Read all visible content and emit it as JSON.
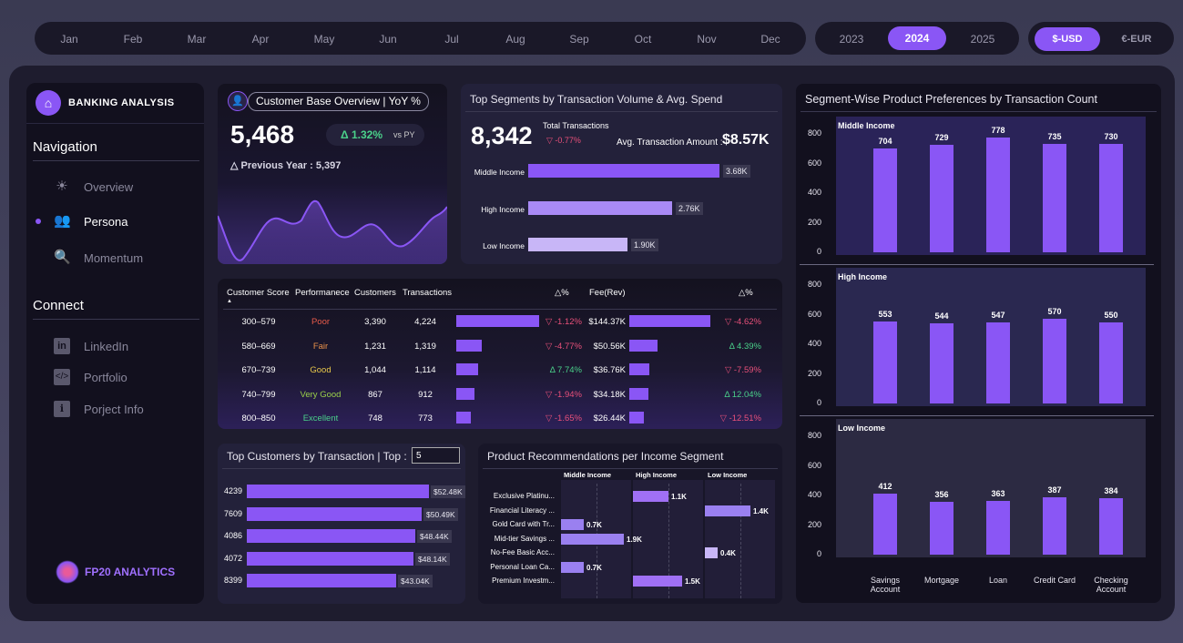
{
  "months": [
    "Jan",
    "Feb",
    "Mar",
    "Apr",
    "May",
    "Jun",
    "Jul",
    "Aug",
    "Sep",
    "Oct",
    "Nov",
    "Dec"
  ],
  "years": {
    "y1": "2023",
    "y2": "2024",
    "y3": "2025"
  },
  "currency": {
    "usd": "$-USD",
    "eur": "€-EUR"
  },
  "sidebar": {
    "app_title": "BANKING ANALYSIS",
    "nav_heading": "Navigation",
    "nav": [
      {
        "label": "Overview"
      },
      {
        "label": "Persona"
      },
      {
        "label": "Momentum"
      }
    ],
    "connect_heading": "Connect",
    "connect": [
      {
        "label": "LinkedIn"
      },
      {
        "label": "Portfolio"
      },
      {
        "label": "Porject Info"
      }
    ],
    "brand": "FP20 ANALYTICS"
  },
  "kpi": {
    "title": "Customer Base Overview | YoY %",
    "value": "5,468",
    "delta": "Δ 1.32%",
    "vs": "vs PY",
    "prev": "△ Previous Year : 5,397"
  },
  "segments_card": {
    "title": "Top Segments by Transaction Volume & Avg. Spend",
    "total": "8,342",
    "total_label": "Total Transactions",
    "total_delta": "▽ -0.77%",
    "avg_label": "Avg. Transaction Amount :",
    "avg_value": "$8.57K",
    "rows": [
      {
        "label": "Middle Income",
        "value": "3.68K",
        "share": 1.0
      },
      {
        "label": "High Income",
        "value": "2.76K",
        "share": 0.75
      },
      {
        "label": "Low Income",
        "value": "1.90K",
        "share": 0.52
      }
    ]
  },
  "score_table": {
    "headers": {
      "score": "Customer Score",
      "perf": "Performanece",
      "cust": "Customers",
      "trans": "Transactions",
      "d1": "△%",
      "fee": "Fee(Rev)",
      "d2": "△%"
    },
    "rows": [
      {
        "score": "300–579",
        "perf": "Poor",
        "perf_color": "#e85a4a",
        "cust": "3,390",
        "trans": "4,224",
        "trans_share": 1.0,
        "d1": "▽ -1.12%",
        "d1_color": "#e8507a",
        "fee": "$144.37K",
        "fee_share": 1.0,
        "d2": "▽ -4.62%",
        "d2_color": "#e8507a"
      },
      {
        "score": "580–669",
        "perf": "Fair",
        "perf_color": "#e8904a",
        "cust": "1,231",
        "trans": "1,319",
        "trans_share": 0.31,
        "d1": "▽ -4.77%",
        "d1_color": "#e8507a",
        "fee": "$50.56K",
        "fee_share": 0.35,
        "d2": "Δ 4.39%",
        "d2_color": "#4ad08a"
      },
      {
        "score": "670–739",
        "perf": "Good",
        "perf_color": "#e8c84a",
        "cust": "1,044",
        "trans": "1,114",
        "trans_share": 0.26,
        "d1": "Δ 7.74%",
        "d1_color": "#4ad08a",
        "fee": "$36.76K",
        "fee_share": 0.25,
        "d2": "▽ -7.59%",
        "d2_color": "#e8507a"
      },
      {
        "score": "740–799",
        "perf": "Very Good",
        "perf_color": "#9ad04a",
        "cust": "867",
        "trans": "912",
        "trans_share": 0.22,
        "d1": "▽ -1.94%",
        "d1_color": "#e8507a",
        "fee": "$34.18K",
        "fee_share": 0.24,
        "d2": "Δ 12.04%",
        "d2_color": "#4ad08a"
      },
      {
        "score": "800–850",
        "perf": "Excellent",
        "perf_color": "#4ad08a",
        "cust": "748",
        "trans": "773",
        "trans_share": 0.18,
        "d1": "▽ -1.65%",
        "d1_color": "#e8507a",
        "fee": "$26.44K",
        "fee_share": 0.18,
        "d2": "▽ -12.51%",
        "d2_color": "#e8507a"
      }
    ]
  },
  "top_customers": {
    "title": "Top Customers by Transaction | Top :",
    "top_n": "5",
    "rows": [
      {
        "id": "4239",
        "value": "$52.48K",
        "share": 1.0
      },
      {
        "id": "7609",
        "value": "$50.49K",
        "share": 0.962
      },
      {
        "id": "4086",
        "value": "$48.44K",
        "share": 0.923
      },
      {
        "id": "4072",
        "value": "$48.14K",
        "share": 0.917
      },
      {
        "id": "8399",
        "value": "$43.04K",
        "share": 0.82
      }
    ]
  },
  "recommendations": {
    "title": "Product Recommendations per Income Segment",
    "columns": [
      "Middle Income",
      "High Income",
      "Low Income"
    ],
    "rows": [
      {
        "label": "Exclusive Platinu...",
        "col": 1,
        "value": "1.1K",
        "share": 0.28
      },
      {
        "label": "Financial Literacy ...",
        "col": 2,
        "value": "1.4K",
        "share": 0.36
      },
      {
        "label": "Gold Card with Tr...",
        "col": 0,
        "value": "0.7K",
        "share": 0.18
      },
      {
        "label": "Mid-tier Savings ...",
        "col": 0,
        "value": "1.9K",
        "share": 0.5
      },
      {
        "label": "No-Fee Basic Acc...",
        "col": 2,
        "value": "0.4K",
        "share": 0.1
      },
      {
        "label": "Personal Loan Ca...",
        "col": 0,
        "value": "0.7K",
        "share": 0.18
      },
      {
        "label": "Premium Investm...",
        "col": 1,
        "value": "1.5K",
        "share": 0.39
      }
    ]
  },
  "chart_data": {
    "type": "bar",
    "title": "Segment-Wise Product Preferences by Transaction Count",
    "categories": [
      "Savings Account",
      "Mortgage",
      "Loan",
      "Credit Card",
      "Checking Account"
    ],
    "ylim": [
      0,
      800
    ],
    "yticks": [
      0,
      200,
      400,
      600,
      800
    ],
    "series": [
      {
        "name": "Middle Income",
        "values": [
          704,
          729,
          778,
          735,
          730
        ]
      },
      {
        "name": "High Income",
        "values": [
          553,
          544,
          547,
          570,
          550
        ]
      },
      {
        "name": "Low Income",
        "values": [
          412,
          356,
          363,
          387,
          384
        ]
      }
    ]
  },
  "colors": {
    "accent": "#8a56f5",
    "bg": "#1e1c2e"
  }
}
